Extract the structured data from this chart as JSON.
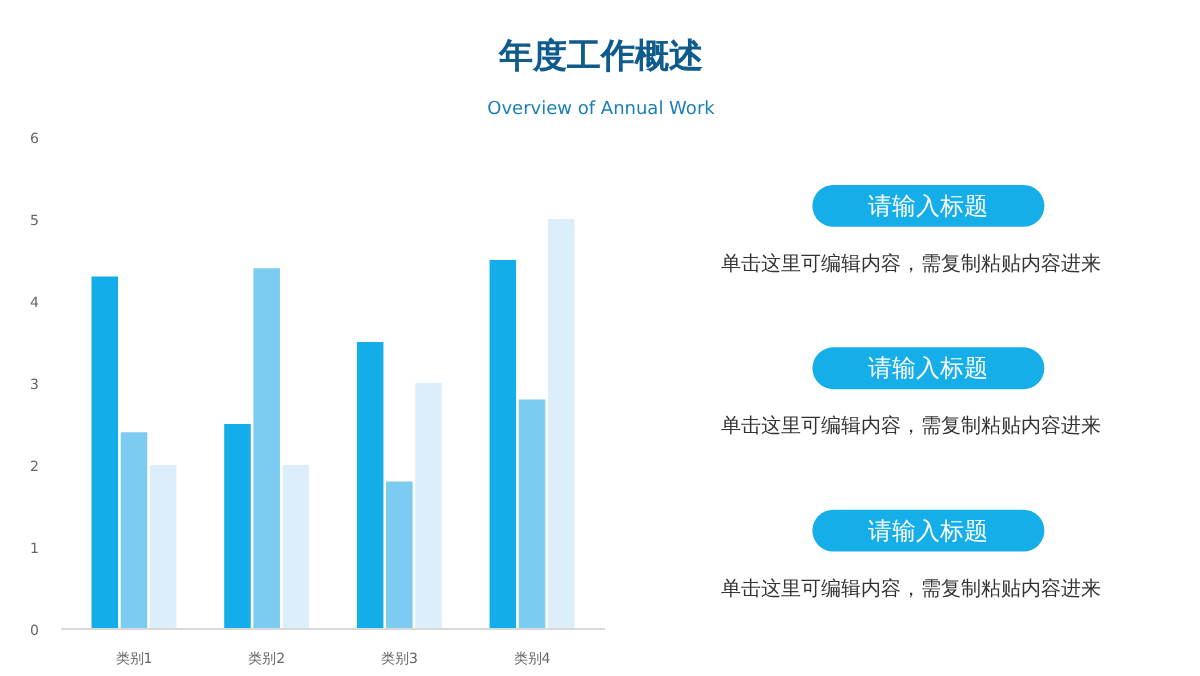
{
  "chart_data": {
    "type": "bar",
    "title": "年度工作概述",
    "subtitle": "Overview of Annual Work",
    "categories": [
      "类别1",
      "类别2",
      "类别3",
      "类别4"
    ],
    "series": [
      {
        "color": "#13aee9",
        "values": [
          4.3,
          2.5,
          3.5,
          4.5
        ]
      },
      {
        "color": "#7ccbf0",
        "values": [
          2.4,
          4.4,
          1.8,
          2.8
        ]
      },
      {
        "color": "#dbeef9",
        "values": [
          2,
          2,
          3,
          5
        ]
      }
    ],
    "ylim": [
      0,
      6
    ],
    "yticks": [
      0,
      1,
      2,
      3,
      4,
      5,
      6
    ],
    "grid": false,
    "annotations": [
      "请输入标题",
      "单击这里可编辑内容，需复制粘贴内容进来",
      "请输入标题",
      "单击这里可编辑内容，需复制粘贴内容进来",
      "请输入标题",
      "单击这里可编辑内容，需复制粘贴内容进来"
    ]
  }
}
